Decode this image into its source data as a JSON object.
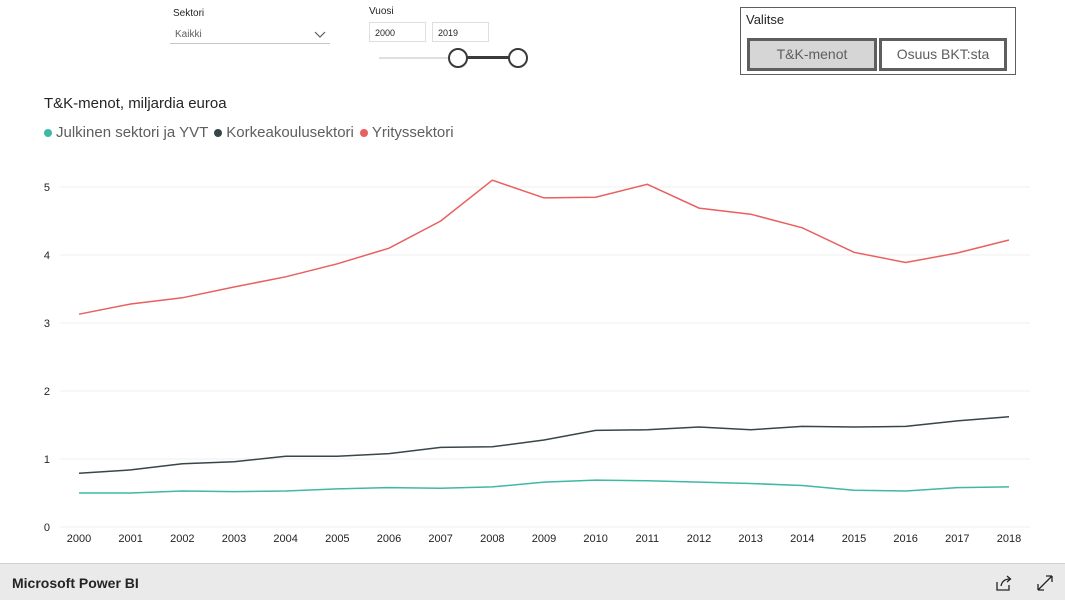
{
  "filters": {
    "sector_label": "Sektori",
    "sector_value": "Kaikki",
    "year_label": "Vuosi",
    "year_from": "2000",
    "year_to": "2019",
    "year_range_fraction": [
      0.57,
      1.0
    ]
  },
  "selector": {
    "title": "Valitse",
    "options": [
      "T&K-menot",
      "Osuus BKT:sta"
    ],
    "selected_index": 0
  },
  "footer": {
    "brand": "Microsoft Power BI",
    "icons": [
      "share-icon",
      "fullscreen-icon"
    ]
  },
  "chart_data": {
    "type": "line",
    "title": "T&K-menot, miljardia euroa",
    "x": [
      2000,
      2001,
      2002,
      2003,
      2004,
      2005,
      2006,
      2007,
      2008,
      2009,
      2010,
      2011,
      2012,
      2013,
      2014,
      2015,
      2016,
      2017,
      2018
    ],
    "ylim": [
      0,
      5.5
    ],
    "yticks": [
      0,
      1,
      2,
      3,
      4,
      5
    ],
    "grid": true,
    "legend_position": "top-left",
    "series": [
      {
        "name": "Julkinen sektori ja YVT",
        "color": "#3fb8a6",
        "values": [
          0.5,
          0.5,
          0.53,
          0.52,
          0.53,
          0.56,
          0.58,
          0.57,
          0.59,
          0.66,
          0.69,
          0.68,
          0.66,
          0.64,
          0.61,
          0.54,
          0.53,
          0.58,
          0.59
        ]
      },
      {
        "name": "Korkeakoulusektori",
        "color": "#374649",
        "values": [
          0.79,
          0.84,
          0.93,
          0.96,
          1.04,
          1.04,
          1.08,
          1.17,
          1.18,
          1.28,
          1.42,
          1.43,
          1.47,
          1.43,
          1.48,
          1.47,
          1.48,
          1.56,
          1.62
        ]
      },
      {
        "name": "Yrityssektori",
        "color": "#e8605f",
        "values": [
          3.13,
          3.28,
          3.37,
          3.53,
          3.68,
          3.87,
          4.1,
          4.5,
          5.1,
          4.84,
          4.85,
          5.04,
          4.69,
          4.6,
          4.4,
          4.04,
          3.89,
          4.03,
          4.22
        ]
      }
    ]
  }
}
